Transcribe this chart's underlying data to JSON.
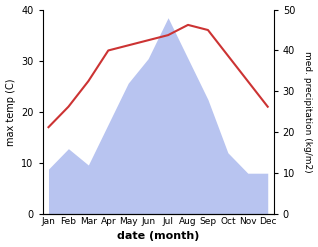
{
  "months": [
    "Jan",
    "Feb",
    "Mar",
    "Apr",
    "May",
    "Jun",
    "Jul",
    "Aug",
    "Sep",
    "Oct",
    "Nov",
    "Dec"
  ],
  "temperature": [
    17,
    21,
    26,
    32,
    33,
    34,
    35,
    37,
    36,
    31,
    26,
    21
  ],
  "precipitation": [
    11,
    16,
    12,
    22,
    32,
    38,
    48,
    38,
    28,
    15,
    10,
    10
  ],
  "temp_color": "#cc3333",
  "precip_color": "#b8c4f0",
  "ylabel_left": "max temp (C)",
  "ylabel_right": "med. precipitation (kg/m2)",
  "xlabel": "date (month)",
  "ylim_left": [
    0,
    40
  ],
  "ylim_right": [
    0,
    50
  ],
  "yticks_left": [
    0,
    10,
    20,
    30,
    40
  ],
  "yticks_right": [
    0,
    10,
    20,
    30,
    40,
    50
  ],
  "title": ""
}
